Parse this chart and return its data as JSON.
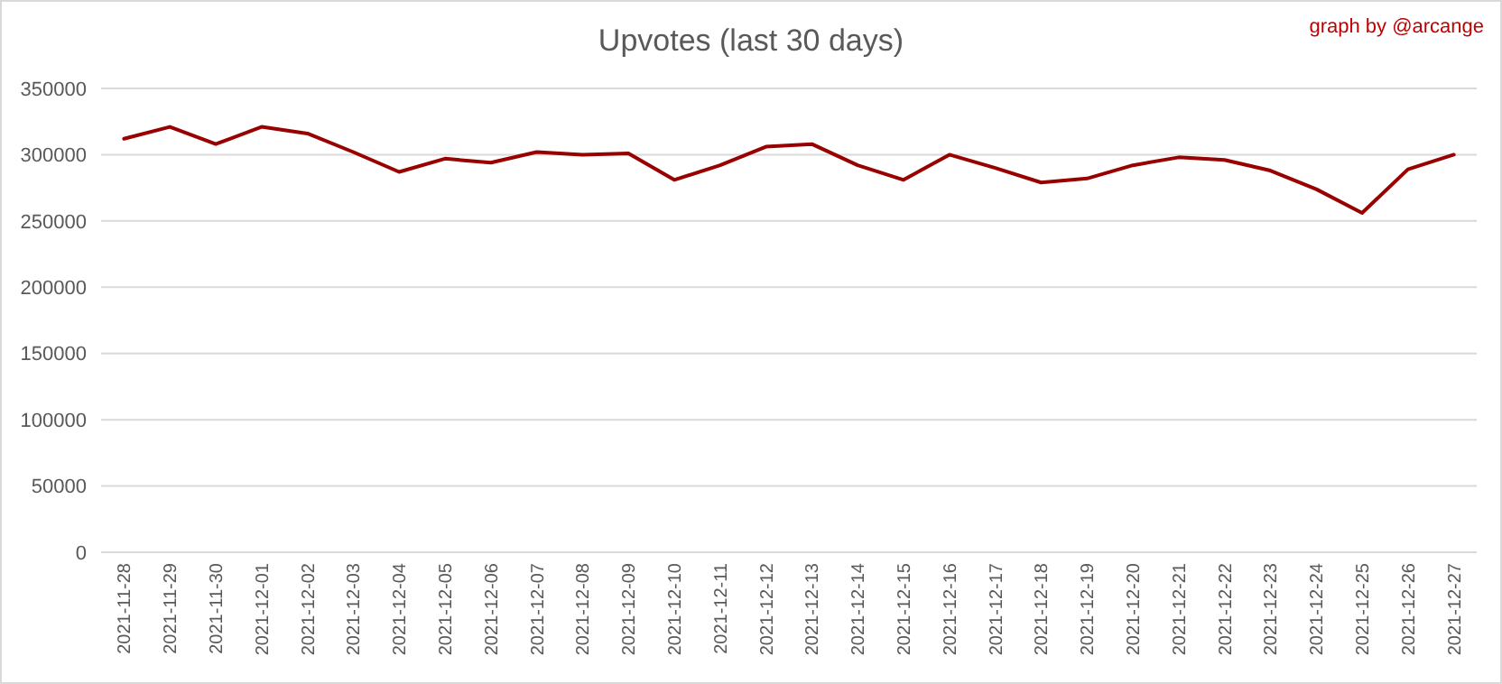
{
  "chart_data": {
    "type": "line",
    "title": "Upvotes (last 30 days)",
    "annotations": [
      "graph by @arcange"
    ],
    "categories": [
      "2021-11-28",
      "2021-11-29",
      "2021-11-30",
      "2021-12-01",
      "2021-12-02",
      "2021-12-03",
      "2021-12-04",
      "2021-12-05",
      "2021-12-06",
      "2021-12-07",
      "2021-12-08",
      "2021-12-09",
      "2021-12-10",
      "2021-12-11",
      "2021-12-12",
      "2021-12-13",
      "2021-12-14",
      "2021-12-15",
      "2021-12-16",
      "2021-12-17",
      "2021-12-18",
      "2021-12-19",
      "2021-12-20",
      "2021-12-21",
      "2021-12-22",
      "2021-12-23",
      "2021-12-24",
      "2021-12-25",
      "2021-12-26",
      "2021-12-27"
    ],
    "series": [
      {
        "color": "#990000",
        "values": [
          312000,
          321000,
          308000,
          321000,
          316000,
          302000,
          287000,
          297000,
          294000,
          302000,
          300000,
          301000,
          281000,
          292000,
          306000,
          308000,
          292000,
          281000,
          300000,
          290000,
          279000,
          282000,
          292000,
          298000,
          296000,
          288000,
          274000,
          256000,
          289000,
          300000
        ]
      }
    ],
    "ylim": [
      0,
      350000
    ],
    "yticks": [
      0,
      50000,
      100000,
      150000,
      200000,
      250000,
      300000,
      350000
    ],
    "grid": "y",
    "marker": "none",
    "line_style": "solid"
  }
}
